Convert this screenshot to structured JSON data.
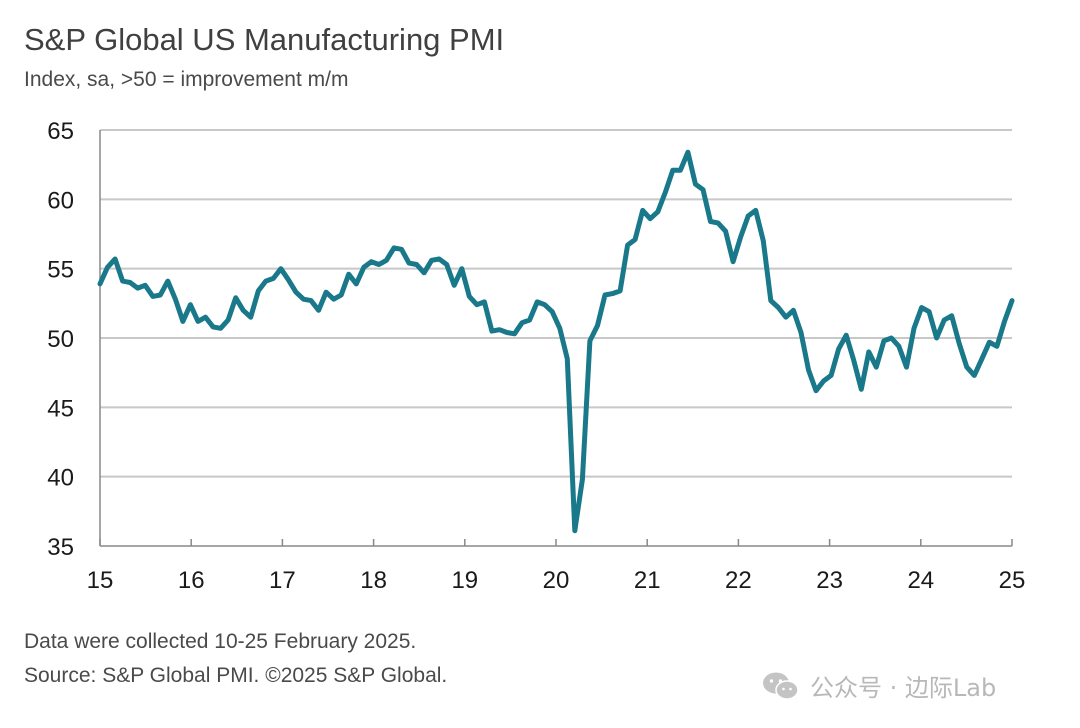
{
  "header": {
    "title": "S&P Global US Manufacturing PMI",
    "subtitle": "Index, sa, >50 = improvement m/m"
  },
  "footer": {
    "note": "Data were collected 10-25 February 2025.",
    "source": "Source: S&P Global PMI. ©2025 S&P Global."
  },
  "watermark": {
    "text": "公众号 · 边际Lab",
    "icon": "wechat-icon"
  },
  "colors": {
    "series": "#19788a",
    "grid": "#c8c8c8",
    "axis": "#888888"
  },
  "chart_data": {
    "type": "line",
    "title": "S&P Global US Manufacturing PMI",
    "subtitle": "Index, sa, >50 = improvement m/m",
    "xlabel": "",
    "ylabel": "",
    "ylim": [
      35,
      65
    ],
    "xlim": [
      2015,
      2025
    ],
    "yticks": [
      35,
      40,
      45,
      50,
      55,
      60,
      65
    ],
    "xticks": [
      {
        "value": 2015,
        "label": "15"
      },
      {
        "value": 2016,
        "label": "16"
      },
      {
        "value": 2017,
        "label": "17"
      },
      {
        "value": 2018,
        "label": "18"
      },
      {
        "value": 2019,
        "label": "19"
      },
      {
        "value": 2020,
        "label": "20"
      },
      {
        "value": 2021,
        "label": "21"
      },
      {
        "value": 2022,
        "label": "22"
      },
      {
        "value": 2023,
        "label": "23"
      },
      {
        "value": 2024,
        "label": "24"
      },
      {
        "value": 2025,
        "label": "25"
      }
    ],
    "grid": true,
    "series": [
      {
        "name": "US Manufacturing PMI",
        "start": 2015,
        "step": 0.08333,
        "values": [
          53.9,
          55.1,
          55.7,
          54.1,
          54.0,
          53.6,
          53.8,
          53.0,
          53.1,
          54.1,
          52.8,
          51.2,
          52.4,
          51.2,
          51.5,
          50.8,
          50.7,
          51.3,
          52.9,
          52.0,
          51.5,
          53.4,
          54.1,
          54.3,
          55.0,
          54.2,
          53.3,
          52.8,
          52.7,
          52.0,
          53.3,
          52.8,
          53.1,
          54.6,
          53.9,
          55.1,
          55.5,
          55.3,
          55.6,
          56.5,
          56.4,
          55.4,
          55.3,
          54.7,
          55.6,
          55.7,
          55.3,
          53.8,
          55.0,
          53.0,
          52.4,
          52.6,
          50.5,
          50.6,
          50.4,
          50.3,
          51.1,
          51.3,
          52.6,
          52.4,
          51.9,
          50.7,
          48.5,
          36.1,
          39.8,
          49.8,
          50.9,
          53.1,
          53.2,
          53.4,
          56.7,
          57.1,
          59.2,
          58.6,
          59.1,
          60.5,
          62.1,
          62.1,
          63.4,
          61.1,
          60.7,
          58.4,
          58.3,
          57.7,
          55.5,
          57.3,
          58.8,
          59.2,
          57.0,
          52.7,
          52.2,
          51.5,
          52.0,
          50.4,
          47.7,
          46.2,
          46.9,
          47.3,
          49.2,
          50.2,
          48.4,
          46.3,
          49.0,
          47.9,
          49.8,
          50.0,
          49.4,
          47.9,
          50.7,
          52.2,
          51.9,
          50.0,
          51.3,
          51.6,
          49.6,
          47.9,
          47.3,
          48.5,
          49.7,
          49.4,
          51.2,
          52.7
        ]
      }
    ]
  }
}
